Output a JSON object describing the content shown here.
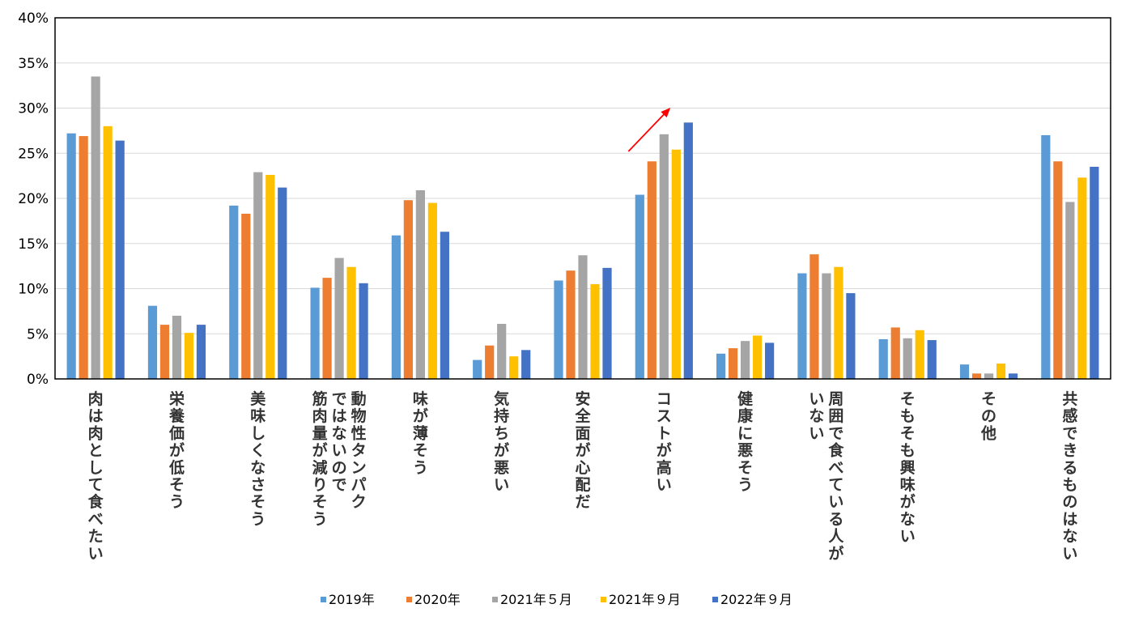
{
  "chart_data": {
    "type": "bar",
    "title": "",
    "xlabel": "",
    "ylabel": "",
    "ylim": [
      0,
      40
    ],
    "yticks": [
      "0%",
      "5%",
      "10%",
      "15%",
      "20%",
      "25%",
      "30%",
      "35%",
      "40%"
    ],
    "grid": true,
    "legend_position": "bottom",
    "categories": [
      [
        "肉は肉として食べたい"
      ],
      [
        "栄養価が低そう"
      ],
      [
        "美味しくなさそう"
      ],
      [
        "動物性タンパク",
        "ではないので",
        "筋肉量が減りそう"
      ],
      [
        "味が薄そう"
      ],
      [
        "気持ちが悪い"
      ],
      [
        "安全面が心配だ"
      ],
      [
        "コストが高い"
      ],
      [
        "健康に悪そう"
      ],
      [
        "周囲で食べている人が",
        "いない"
      ],
      [
        "そもそも興味がない"
      ],
      [
        "その他"
      ],
      [
        "共感できるものはない"
      ]
    ],
    "series": [
      {
        "name": "2019年",
        "color": "#5B9BD5",
        "values": [
          27.2,
          8.1,
          19.2,
          10.1,
          15.9,
          2.1,
          10.9,
          20.4,
          2.8,
          11.7,
          4.4,
          1.6,
          27.0
        ]
      },
      {
        "name": "2020年",
        "color": "#ED7D31",
        "values": [
          26.9,
          6.0,
          18.3,
          11.2,
          19.8,
          3.7,
          12.0,
          24.1,
          3.4,
          13.8,
          5.7,
          0.6,
          24.1
        ]
      },
      {
        "name": "2021年５月",
        "color": "#A5A5A5",
        "values": [
          33.5,
          7.0,
          22.9,
          13.4,
          20.9,
          6.1,
          13.7,
          27.1,
          4.2,
          11.7,
          4.5,
          0.6,
          19.6
        ]
      },
      {
        "name": "2021年９月",
        "color": "#FFC000",
        "values": [
          28.0,
          5.1,
          22.6,
          12.4,
          19.5,
          2.5,
          10.5,
          25.4,
          4.8,
          12.4,
          5.4,
          1.7,
          22.3
        ]
      },
      {
        "name": "2022年９月",
        "color": "#4472C4",
        "values": [
          26.4,
          6.0,
          21.2,
          10.6,
          16.3,
          3.2,
          12.3,
          28.4,
          4.0,
          9.5,
          4.3,
          0.6,
          23.5
        ]
      }
    ],
    "annotation": {
      "type": "arrow",
      "color": "#FF0000",
      "category": "コストが高い"
    }
  }
}
